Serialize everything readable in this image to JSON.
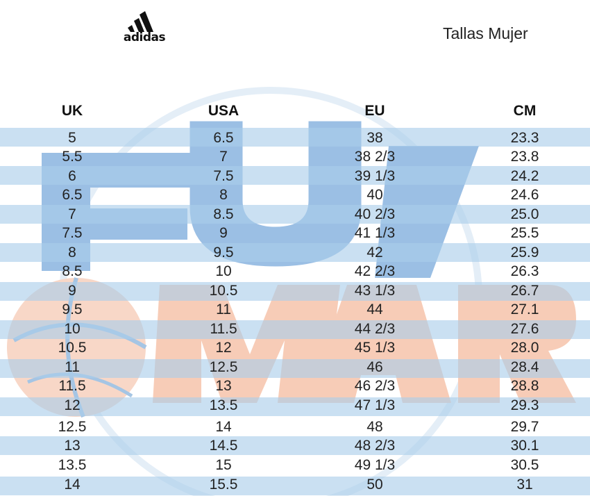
{
  "header": {
    "logo_text": "adidas",
    "title": "Tallas Mujer"
  },
  "table": {
    "columns": [
      "UK",
      "USA",
      "EU",
      "CM"
    ],
    "rows": [
      [
        "5",
        "6.5",
        "38",
        "23.3"
      ],
      [
        "5.5",
        "7",
        "38 2/3",
        "23.8"
      ],
      [
        "6",
        "7.5",
        "39 1/3",
        "24.2"
      ],
      [
        "6.5",
        "8",
        "40",
        "24.6"
      ],
      [
        "7",
        "8.5",
        "40 2/3",
        "25.0"
      ],
      [
        "7.5",
        "9",
        "41 1/3",
        "25.5"
      ],
      [
        "8",
        "9.5",
        "42",
        "25.9"
      ],
      [
        "8.5",
        "10",
        "42 2/3",
        "26.3"
      ],
      [
        "9",
        "10.5",
        "43 1/3",
        "26.7"
      ],
      [
        "9.5",
        "11",
        "44",
        "27.1"
      ],
      [
        "10",
        "11.5",
        "44 2/3",
        "27.6"
      ],
      [
        "10.5",
        "12",
        "45 1/3",
        "28.0"
      ],
      [
        "11",
        "12.5",
        "46",
        "28.4"
      ],
      [
        "11.5",
        "13",
        "46 2/3",
        "28.8"
      ],
      [
        "12",
        "13.5",
        "47 1/3",
        "29.3"
      ],
      [
        "12.5",
        "14",
        "48",
        "29.7"
      ],
      [
        "13",
        "14.5",
        "48 2/3",
        "30.1"
      ],
      [
        "13.5",
        "15",
        "49 1/3",
        "30.5"
      ],
      [
        "14",
        "15.5",
        "50",
        "31"
      ]
    ]
  },
  "colors": {
    "stripe": "#a9cdea",
    "watermark_blue": "#3f86c6",
    "watermark_orange": "#f0a17c"
  },
  "icons": [
    "adidas-logo-icon",
    "basketball-watermark-icon"
  ]
}
